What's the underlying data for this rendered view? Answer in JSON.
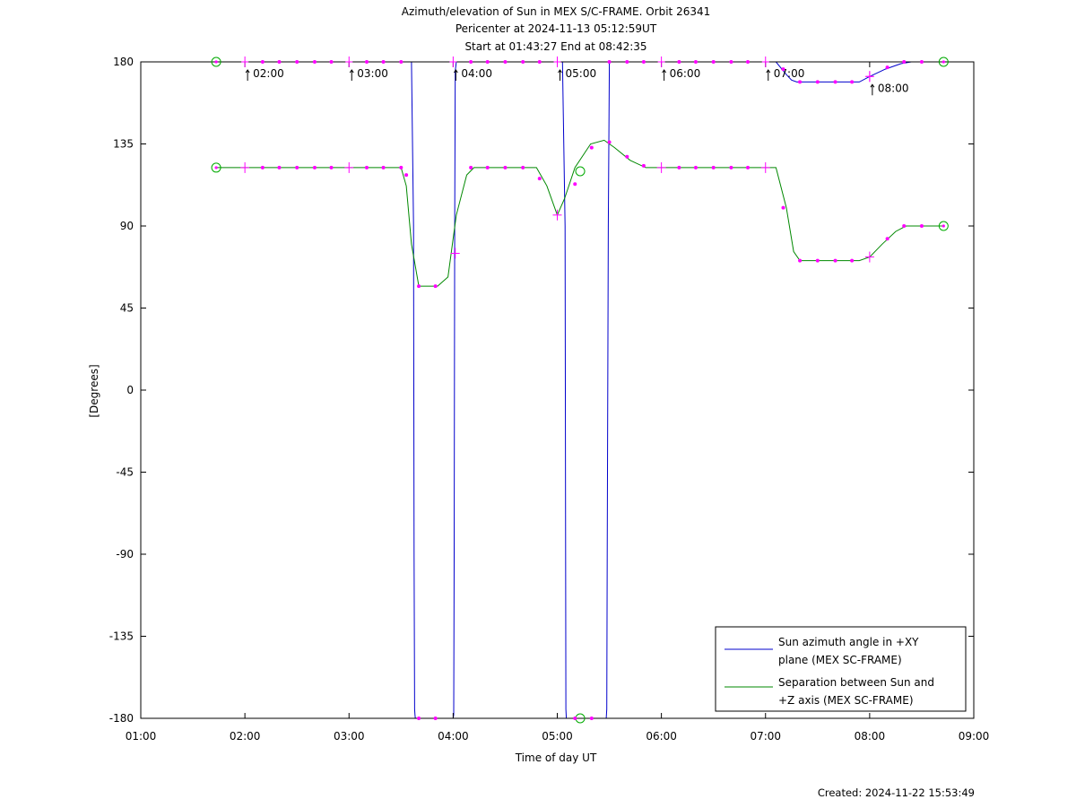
{
  "created_label": "Created: 2024-11-22 15:53:49",
  "chart_data": {
    "type": "line",
    "title_lines": [
      "Azimuth/elevation of Sun in MEX S/C-FRAME.  Orbit 26341",
      "Pericenter at 2024-11-13 05:12:59UT",
      "Start at 01:43:27 End at 08:42:35"
    ],
    "xlabel": "Time of day UT",
    "ylabel": "[Degrees]",
    "xlim_hours": [
      1,
      9
    ],
    "ylim": [
      -180,
      180
    ],
    "xtick_values": [
      1,
      2,
      3,
      4,
      5,
      6,
      7,
      8,
      9
    ],
    "xtick_labels": [
      "01:00",
      "02:00",
      "03:00",
      "04:00",
      "05:00",
      "06:00",
      "07:00",
      "08:00",
      "09:00"
    ],
    "ytick_values": [
      180,
      135,
      90,
      45,
      0,
      -45,
      -90,
      -135,
      -180
    ],
    "ytick_labels": [
      "180",
      "135",
      "90",
      "45",
      "0",
      "-45",
      "-90",
      "-135",
      "-180"
    ],
    "grid": false,
    "legend_position": "bottom-right",
    "series": [
      {
        "name": "Sun azimuth angle in +XY plane (MEX SC-FRAME)",
        "legend_lines": [
          "Sun azimuth angle in +XY",
          "plane (MEX SC-FRAME)"
        ],
        "color": "#0000cc",
        "x_hours": [
          1.724,
          3.55,
          3.6,
          3.62,
          3.625,
          3.63,
          3.633,
          3.637,
          4.0,
          4.005,
          4.01,
          4.015,
          4.02,
          4.03,
          5.0,
          5.05,
          5.075,
          5.08,
          5.083,
          5.087,
          5.47,
          5.475,
          5.48,
          5.49,
          5.5,
          7.1,
          7.2,
          7.25,
          7.3,
          7.9,
          8.0,
          8.15,
          8.3,
          8.4,
          8.71
        ],
        "y": [
          180,
          180,
          180,
          90,
          -90,
          -175,
          -178,
          -180,
          -180,
          -178,
          -90,
          90,
          175,
          180,
          180,
          180,
          90,
          -90,
          -175,
          -180,
          -180,
          -175,
          -90,
          90,
          180,
          180,
          173,
          170,
          169,
          169,
          172,
          176,
          179,
          180,
          180
        ]
      },
      {
        "name": "Separation between Sun and +Z axis (MEX SC-FRAME)",
        "legend_lines": [
          "Separation between Sun and",
          "+Z axis (MEX SC-FRAME)"
        ],
        "color": "#008800",
        "x_hours": [
          1.724,
          3.5,
          3.55,
          3.6,
          3.67,
          3.85,
          3.95,
          4.03,
          4.13,
          4.2,
          4.8,
          4.9,
          5.0,
          5.07,
          5.17,
          5.32,
          5.45,
          5.55,
          5.7,
          5.85,
          7.1,
          7.2,
          7.27,
          7.33,
          7.9,
          8.0,
          8.12,
          8.25,
          8.35,
          8.71
        ],
        "y": [
          122,
          122,
          112,
          80,
          57,
          57,
          62,
          96,
          118,
          122,
          122,
          112,
          96,
          105,
          122,
          135,
          137,
          133,
          126,
          122,
          122,
          100,
          76,
          71,
          71,
          73,
          80,
          87,
          90,
          90
        ]
      }
    ],
    "markers": {
      "color": "#ff00ff",
      "circle_color": "#00aa00",
      "start_circles": [
        {
          "x_hours": 1.724,
          "y": 180
        },
        {
          "x_hours": 1.724,
          "y": 122
        }
      ],
      "end_circles": [
        {
          "x_hours": 8.71,
          "y": 180
        },
        {
          "x_hours": 8.71,
          "y": 90
        }
      ],
      "pericenter_circles": [
        {
          "x_hours": 5.22,
          "y": 120
        },
        {
          "x_hours": 5.22,
          "y": -180
        }
      ],
      "hour_tick_labels": [
        {
          "x_hours": 2.0,
          "y": 180,
          "label": "02:00"
        },
        {
          "x_hours": 3.0,
          "y": 180,
          "label": "03:00"
        },
        {
          "x_hours": 4.0,
          "y": 180,
          "label": "04:00"
        },
        {
          "x_hours": 5.0,
          "y": 180,
          "label": "05:00"
        },
        {
          "x_hours": 6.0,
          "y": 180,
          "label": "06:00"
        },
        {
          "x_hours": 7.0,
          "y": 180,
          "label": "07:00"
        },
        {
          "x_hours": 8.0,
          "y": 172,
          "label": "08:00"
        }
      ],
      "plus_marks": [
        {
          "x_hours": 2.0,
          "y": 122
        },
        {
          "x_hours": 3.0,
          "y": 122
        },
        {
          "x_hours": 4.02,
          "y": 75
        },
        {
          "x_hours": 5.0,
          "y": 96
        },
        {
          "x_hours": 6.0,
          "y": 122
        },
        {
          "x_hours": 7.0,
          "y": 122
        },
        {
          "x_hours": 8.0,
          "y": 73
        },
        {
          "x_hours": 8.0,
          "y": 172
        }
      ],
      "azimuth_dots": [
        {
          "x_hours": 2.17,
          "y": 180
        },
        {
          "x_hours": 2.33,
          "y": 180
        },
        {
          "x_hours": 2.5,
          "y": 180
        },
        {
          "x_hours": 2.67,
          "y": 180
        },
        {
          "x_hours": 2.83,
          "y": 180
        },
        {
          "x_hours": 3.17,
          "y": 180
        },
        {
          "x_hours": 3.33,
          "y": 180
        },
        {
          "x_hours": 3.5,
          "y": 180
        },
        {
          "x_hours": 3.67,
          "y": -180
        },
        {
          "x_hours": 3.83,
          "y": -180
        },
        {
          "x_hours": 4.17,
          "y": 180
        },
        {
          "x_hours": 4.33,
          "y": 180
        },
        {
          "x_hours": 4.5,
          "y": 180
        },
        {
          "x_hours": 4.67,
          "y": 180
        },
        {
          "x_hours": 4.83,
          "y": 180
        },
        {
          "x_hours": 5.17,
          "y": -180
        },
        {
          "x_hours": 5.33,
          "y": -180
        },
        {
          "x_hours": 5.5,
          "y": 180
        },
        {
          "x_hours": 5.67,
          "y": 180
        },
        {
          "x_hours": 5.83,
          "y": 180
        },
        {
          "x_hours": 6.17,
          "y": 180
        },
        {
          "x_hours": 6.33,
          "y": 180
        },
        {
          "x_hours": 6.5,
          "y": 180
        },
        {
          "x_hours": 6.67,
          "y": 180
        },
        {
          "x_hours": 6.83,
          "y": 180
        },
        {
          "x_hours": 7.17,
          "y": 176
        },
        {
          "x_hours": 7.33,
          "y": 169
        },
        {
          "x_hours": 7.5,
          "y": 169
        },
        {
          "x_hours": 7.67,
          "y": 169
        },
        {
          "x_hours": 7.83,
          "y": 169
        },
        {
          "x_hours": 8.17,
          "y": 177
        },
        {
          "x_hours": 8.33,
          "y": 180
        },
        {
          "x_hours": 8.5,
          "y": 180
        }
      ],
      "separation_dots": [
        {
          "x_hours": 2.17,
          "y": 122
        },
        {
          "x_hours": 2.33,
          "y": 122
        },
        {
          "x_hours": 2.5,
          "y": 122
        },
        {
          "x_hours": 2.67,
          "y": 122
        },
        {
          "x_hours": 2.83,
          "y": 122
        },
        {
          "x_hours": 3.17,
          "y": 122
        },
        {
          "x_hours": 3.33,
          "y": 122
        },
        {
          "x_hours": 3.5,
          "y": 122
        },
        {
          "x_hours": 3.55,
          "y": 118
        },
        {
          "x_hours": 3.67,
          "y": 57
        },
        {
          "x_hours": 3.83,
          "y": 57
        },
        {
          "x_hours": 4.17,
          "y": 122
        },
        {
          "x_hours": 4.33,
          "y": 122
        },
        {
          "x_hours": 4.5,
          "y": 122
        },
        {
          "x_hours": 4.67,
          "y": 122
        },
        {
          "x_hours": 4.83,
          "y": 116
        },
        {
          "x_hours": 5.17,
          "y": 113
        },
        {
          "x_hours": 5.33,
          "y": 133
        },
        {
          "x_hours": 5.5,
          "y": 136
        },
        {
          "x_hours": 5.67,
          "y": 128
        },
        {
          "x_hours": 5.83,
          "y": 123
        },
        {
          "x_hours": 6.17,
          "y": 122
        },
        {
          "x_hours": 6.33,
          "y": 122
        },
        {
          "x_hours": 6.5,
          "y": 122
        },
        {
          "x_hours": 6.67,
          "y": 122
        },
        {
          "x_hours": 6.83,
          "y": 122
        },
        {
          "x_hours": 7.17,
          "y": 100
        },
        {
          "x_hours": 7.33,
          "y": 71
        },
        {
          "x_hours": 7.5,
          "y": 71
        },
        {
          "x_hours": 7.67,
          "y": 71
        },
        {
          "x_hours": 7.83,
          "y": 71
        },
        {
          "x_hours": 8.17,
          "y": 83
        },
        {
          "x_hours": 8.33,
          "y": 90
        },
        {
          "x_hours": 8.5,
          "y": 90
        }
      ]
    }
  }
}
